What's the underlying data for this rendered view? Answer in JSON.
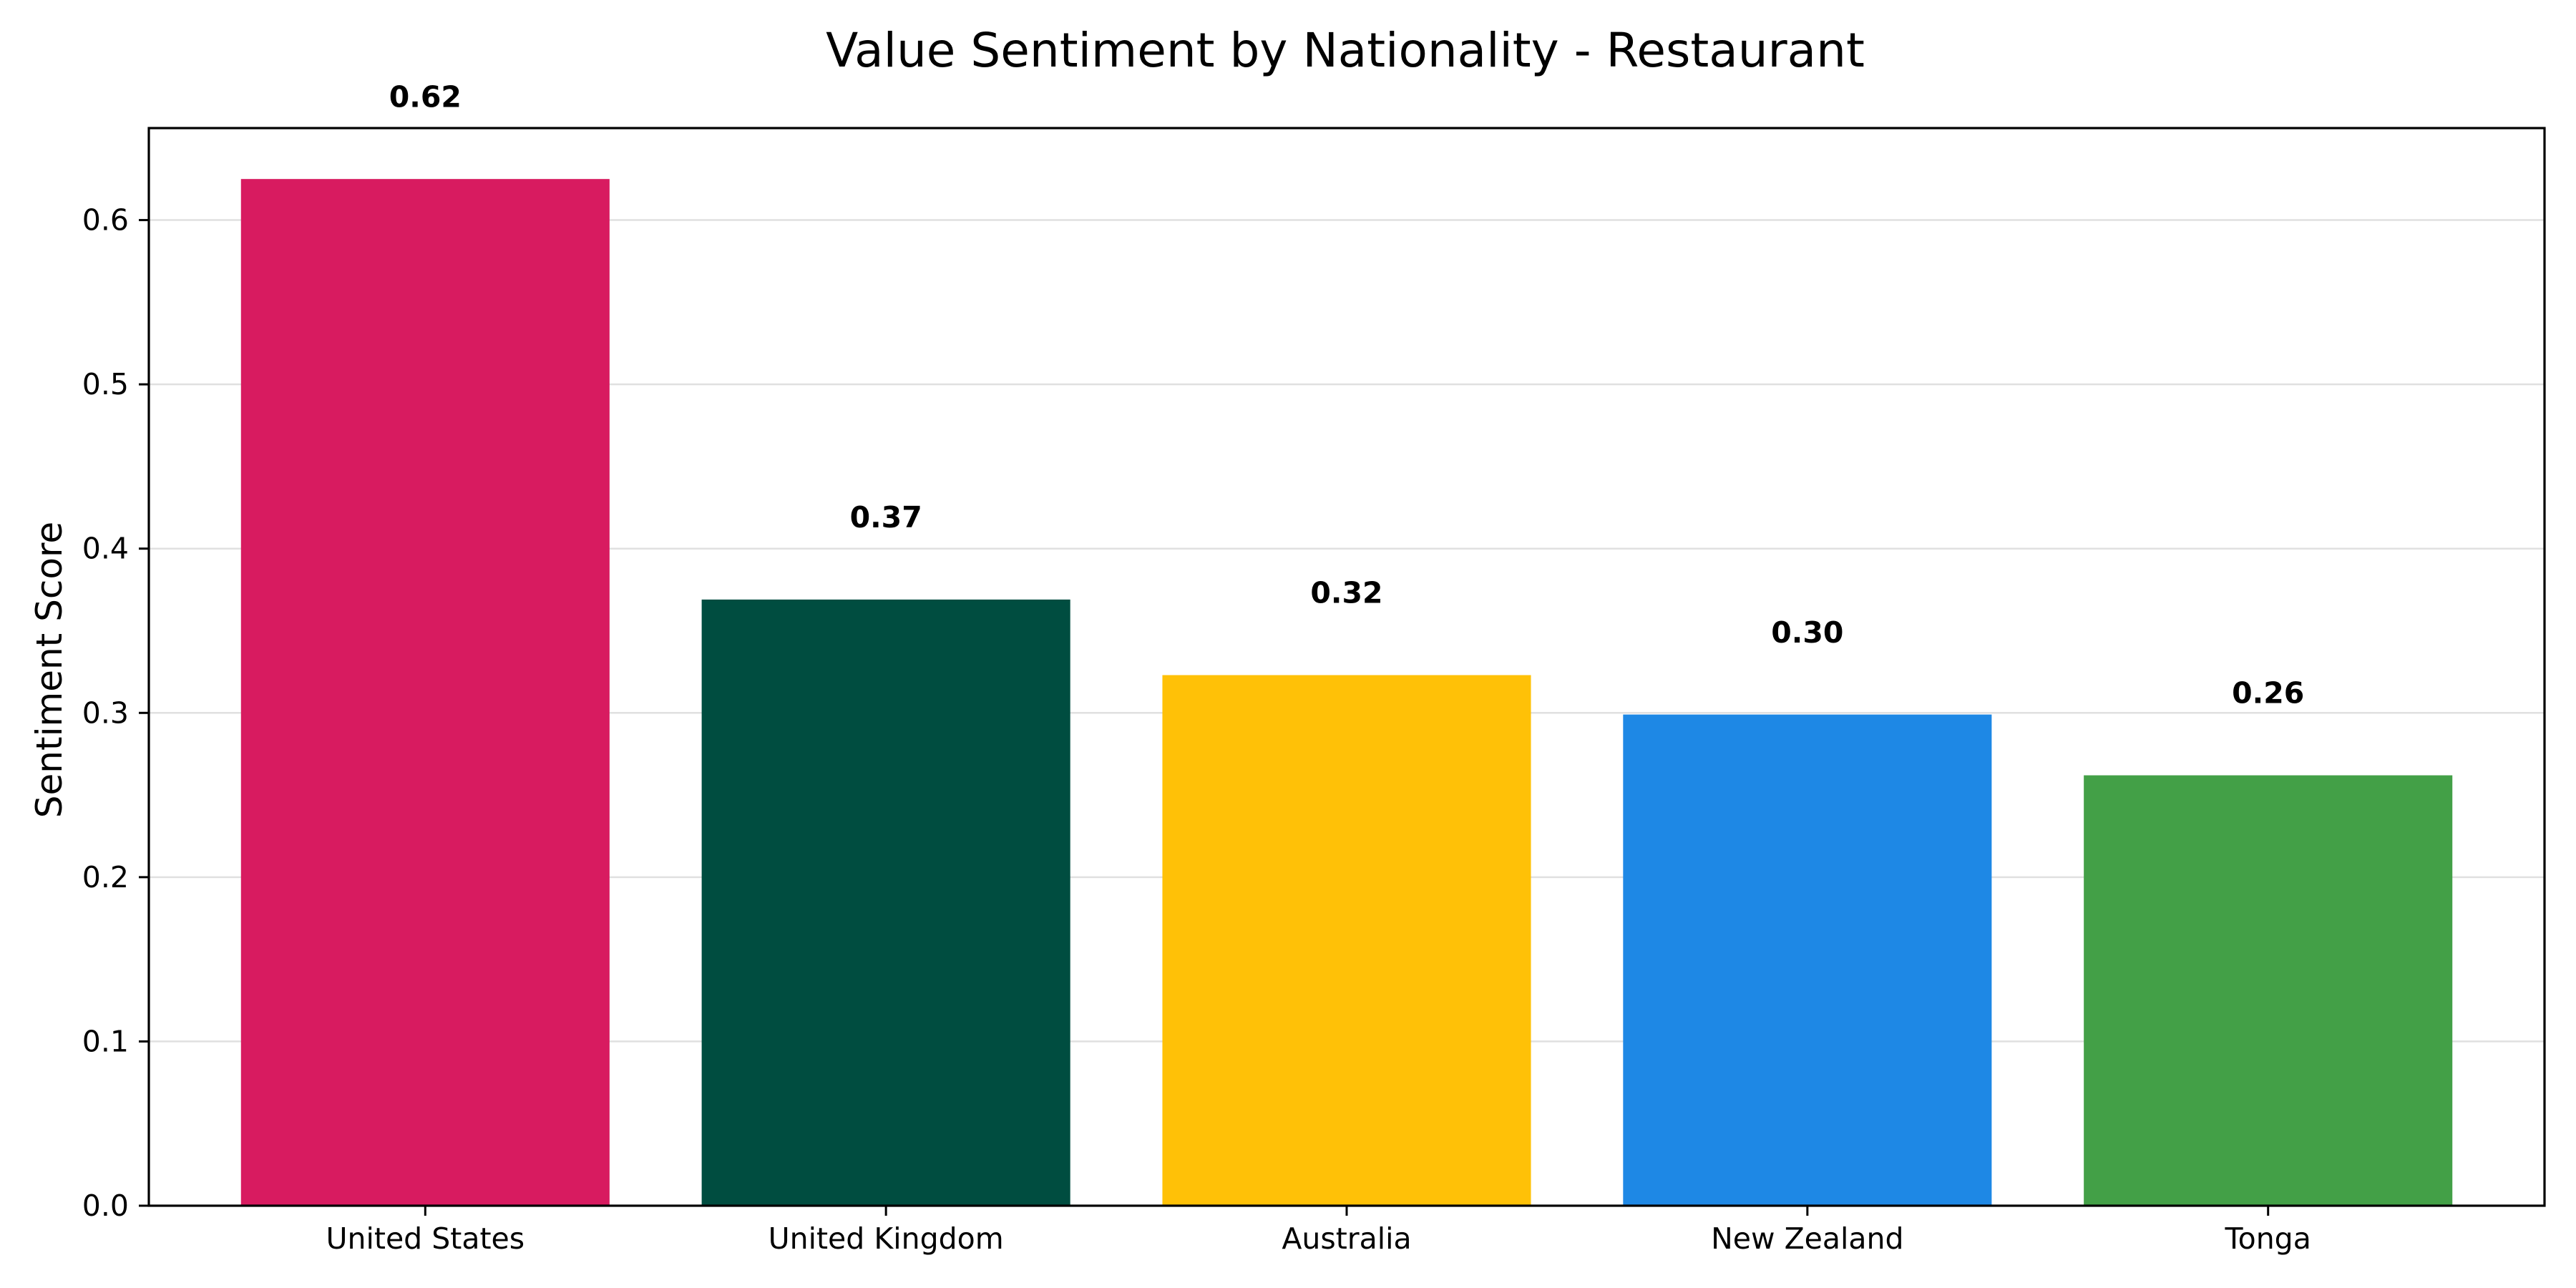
{
  "chart_data": {
    "type": "bar",
    "title": "Value Sentiment by Nationality - Restaurant",
    "xlabel": "",
    "ylabel": "Sentiment Score",
    "categories": [
      "United States",
      "United Kingdom",
      "Australia",
      "New Zealand",
      "Tonga"
    ],
    "values": [
      0.625,
      0.369,
      0.323,
      0.299,
      0.262
    ],
    "value_labels": [
      "0.62",
      "0.37",
      "0.32",
      "0.30",
      "0.26"
    ],
    "colors": [
      "#d81b60",
      "#004d40",
      "#ffc107",
      "#1e88e5",
      "#43a047"
    ],
    "ylim": [
      0,
      0.656
    ],
    "yticks": [
      0.0,
      0.1,
      0.2,
      0.3,
      0.4,
      0.5,
      0.6
    ],
    "ytick_labels": [
      "0.0",
      "0.1",
      "0.2",
      "0.3",
      "0.4",
      "0.5",
      "0.6"
    ],
    "grid": "horizontal",
    "legend": "none"
  }
}
